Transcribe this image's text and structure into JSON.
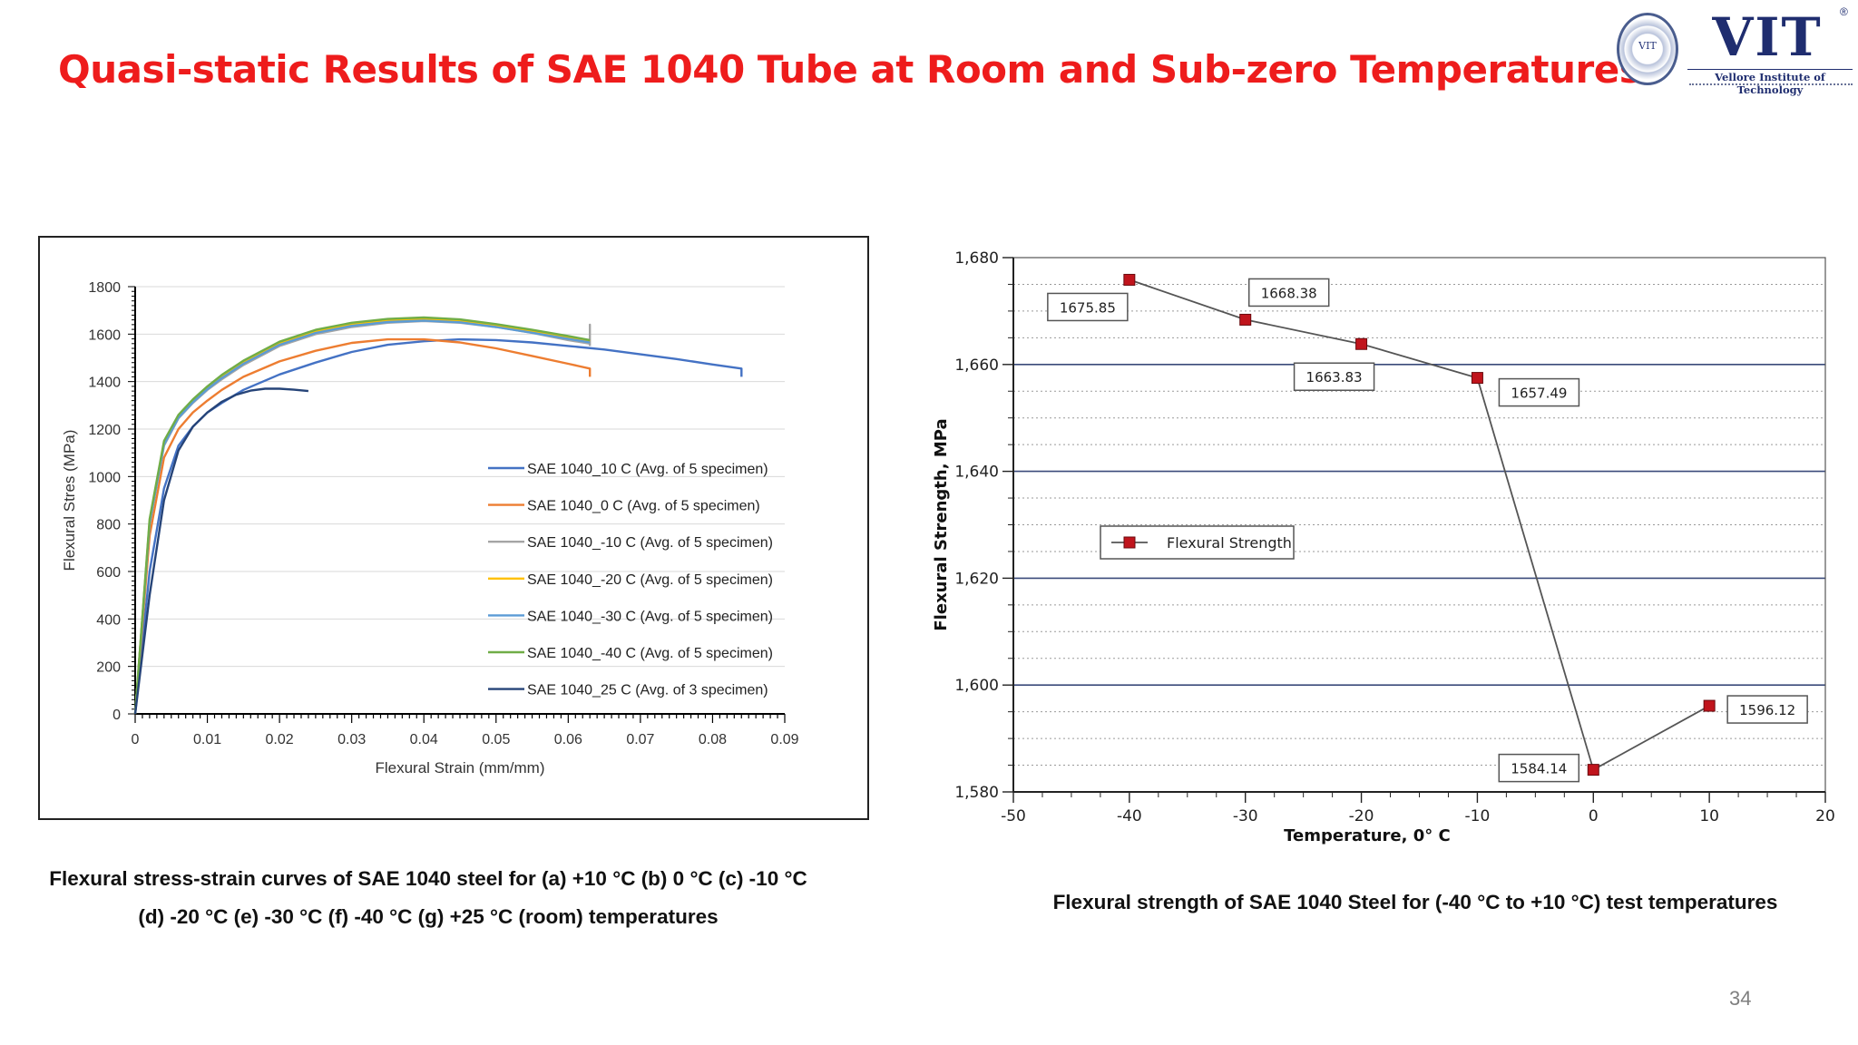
{
  "slide": {
    "title": "Quasi-static Results of SAE 1040 Tube at Room and Sub-zero Temperatures",
    "page_number": "34",
    "logo": {
      "mark": "VIT",
      "registered": "®",
      "seal_text": "VIT",
      "name": "Vellore Institute of Technology"
    }
  },
  "captions": {
    "left_line1": "Flexural stress-strain curves of SAE 1040 steel for (a) +10 °C (b) 0 °C (c) -10 °C",
    "left_line2": "(d) -20 °C (e) -30 °C (f) -40 °C (g) +25 °C (room) temperatures",
    "right": "Flexural strength of SAE 1040 Steel for (-40 °C to +10 °C) test temperatures"
  },
  "colors": {
    "title": "#ee1c1c",
    "s10": "#4472c4",
    "s0": "#ed7d31",
    "sm10": "#a5a5a5",
    "sm20": "#ffc000",
    "sm30": "#5b9bd5",
    "sm40": "#70ad47",
    "s25": "#264478",
    "strength_line": "#555555",
    "strength_marker": "#c0141c",
    "major_grid": "#3a4a7a"
  },
  "chart_data": [
    {
      "type": "line",
      "title": "",
      "xlabel": "Flexural Strain (mm/mm)",
      "ylabel": "Flexural Stres (MPa)",
      "xlim": [
        0,
        0.09
      ],
      "ylim": [
        0,
        1800
      ],
      "x_ticks": [
        "0",
        "0.01",
        "0.02",
        "0.03",
        "0.04",
        "0.05",
        "0.06",
        "0.07",
        "0.08",
        "0.09"
      ],
      "y_ticks": [
        "0",
        "200",
        "400",
        "600",
        "800",
        "1000",
        "1200",
        "1400",
        "1600",
        "1800"
      ],
      "grid": true,
      "legend_position": "right-center",
      "series": [
        {
          "name": "SAE 1040_10 C (Avg. of 5 specimen)",
          "color": "#4472c4",
          "x": [
            0,
            0.002,
            0.004,
            0.006,
            0.008,
            0.01,
            0.012,
            0.015,
            0.02,
            0.025,
            0.03,
            0.035,
            0.04,
            0.045,
            0.05,
            0.055,
            0.06,
            0.065,
            0.07,
            0.075,
            0.08,
            0.084,
            0.084
          ],
          "y": [
            0,
            600,
            950,
            1130,
            1210,
            1270,
            1310,
            1365,
            1430,
            1480,
            1525,
            1555,
            1570,
            1578,
            1575,
            1565,
            1550,
            1535,
            1515,
            1495,
            1472,
            1455,
            1420
          ]
        },
        {
          "name": "SAE 1040_0 C (Avg. of 5 specimen)",
          "color": "#ed7d31",
          "x": [
            0,
            0.002,
            0.004,
            0.006,
            0.008,
            0.01,
            0.012,
            0.015,
            0.02,
            0.025,
            0.03,
            0.035,
            0.04,
            0.045,
            0.05,
            0.055,
            0.06,
            0.063,
            0.063
          ],
          "y": [
            0,
            750,
            1080,
            1200,
            1270,
            1320,
            1365,
            1420,
            1485,
            1530,
            1563,
            1578,
            1578,
            1565,
            1540,
            1508,
            1475,
            1455,
            1420
          ]
        },
        {
          "name": "SAE 1040_-10 C (Avg. of 5 specimen)",
          "color": "#a5a5a5",
          "x": [
            0,
            0.002,
            0.004,
            0.006,
            0.008,
            0.01,
            0.012,
            0.015,
            0.02,
            0.025,
            0.03,
            0.035,
            0.04,
            0.045,
            0.05,
            0.055,
            0.06,
            0.063,
            0.063,
            0.063
          ],
          "y": [
            0,
            800,
            1130,
            1245,
            1310,
            1365,
            1410,
            1470,
            1550,
            1600,
            1630,
            1648,
            1655,
            1648,
            1630,
            1605,
            1575,
            1560,
            1640,
            1550
          ]
        },
        {
          "name": "SAE 1040_-20 C (Avg. of 5 specimen)",
          "color": "#ffc000",
          "x": [
            0,
            0.002,
            0.004,
            0.006,
            0.008,
            0.01,
            0.012,
            0.015,
            0.02,
            0.025,
            0.03,
            0.035,
            0.04,
            0.045,
            0.05,
            0.055,
            0.06,
            0.063
          ],
          "y": [
            0,
            810,
            1140,
            1252,
            1318,
            1373,
            1420,
            1480,
            1560,
            1610,
            1640,
            1656,
            1662,
            1654,
            1635,
            1612,
            1585,
            1570
          ]
        },
        {
          "name": "SAE 1040_-30 C (Avg. of 5 specimen)",
          "color": "#5b9bd5",
          "x": [
            0,
            0.002,
            0.004,
            0.006,
            0.008,
            0.01,
            0.012,
            0.015,
            0.02,
            0.025,
            0.03,
            0.035,
            0.04,
            0.045,
            0.05,
            0.055,
            0.06,
            0.063
          ],
          "y": [
            0,
            805,
            1135,
            1248,
            1313,
            1368,
            1415,
            1475,
            1555,
            1605,
            1635,
            1651,
            1657,
            1650,
            1630,
            1606,
            1580,
            1565
          ]
        },
        {
          "name": "SAE 1040_-40 C (Avg. of 5 specimen)",
          "color": "#70ad47",
          "x": [
            0,
            0.002,
            0.004,
            0.006,
            0.008,
            0.01,
            0.012,
            0.015,
            0.02,
            0.025,
            0.03,
            0.035,
            0.04,
            0.045,
            0.05,
            0.055,
            0.06,
            0.063
          ],
          "y": [
            0,
            820,
            1150,
            1260,
            1325,
            1380,
            1428,
            1488,
            1568,
            1618,
            1648,
            1664,
            1670,
            1662,
            1642,
            1618,
            1592,
            1575
          ]
        },
        {
          "name": "SAE 1040_25 C (Avg. of 3 specimen)",
          "color": "#264478",
          "x": [
            0,
            0.002,
            0.004,
            0.006,
            0.008,
            0.01,
            0.012,
            0.014,
            0.016,
            0.018,
            0.02,
            0.022,
            0.024
          ],
          "y": [
            0,
            500,
            900,
            1110,
            1210,
            1270,
            1315,
            1345,
            1362,
            1370,
            1370,
            1366,
            1360
          ]
        }
      ]
    },
    {
      "type": "line",
      "title": "",
      "xlabel": "Temperature, 0° C",
      "ylabel": "Flexural Strength, MPa",
      "xlim": [
        -50,
        20
      ],
      "ylim": [
        1580,
        1680
      ],
      "x_ticks": [
        "-50",
        "-40",
        "-30",
        "-20",
        "-10",
        "0",
        "10",
        "20"
      ],
      "y_ticks": [
        "1,580",
        "1,600",
        "1,620",
        "1,640",
        "1,660",
        "1,680"
      ],
      "grid": true,
      "legend_position": "left-center",
      "series": [
        {
          "name": "Flexural Strength",
          "color": "#c0141c",
          "x": [
            -40,
            -30,
            -20,
            -10,
            0,
            10
          ],
          "y": [
            1675.85,
            1668.38,
            1663.83,
            1657.49,
            1584.14,
            1596.12
          ],
          "labels": [
            "1675.85",
            "1668.38",
            "1663.83",
            "1657.49",
            "1584.14",
            "1596.12"
          ]
        }
      ]
    }
  ]
}
